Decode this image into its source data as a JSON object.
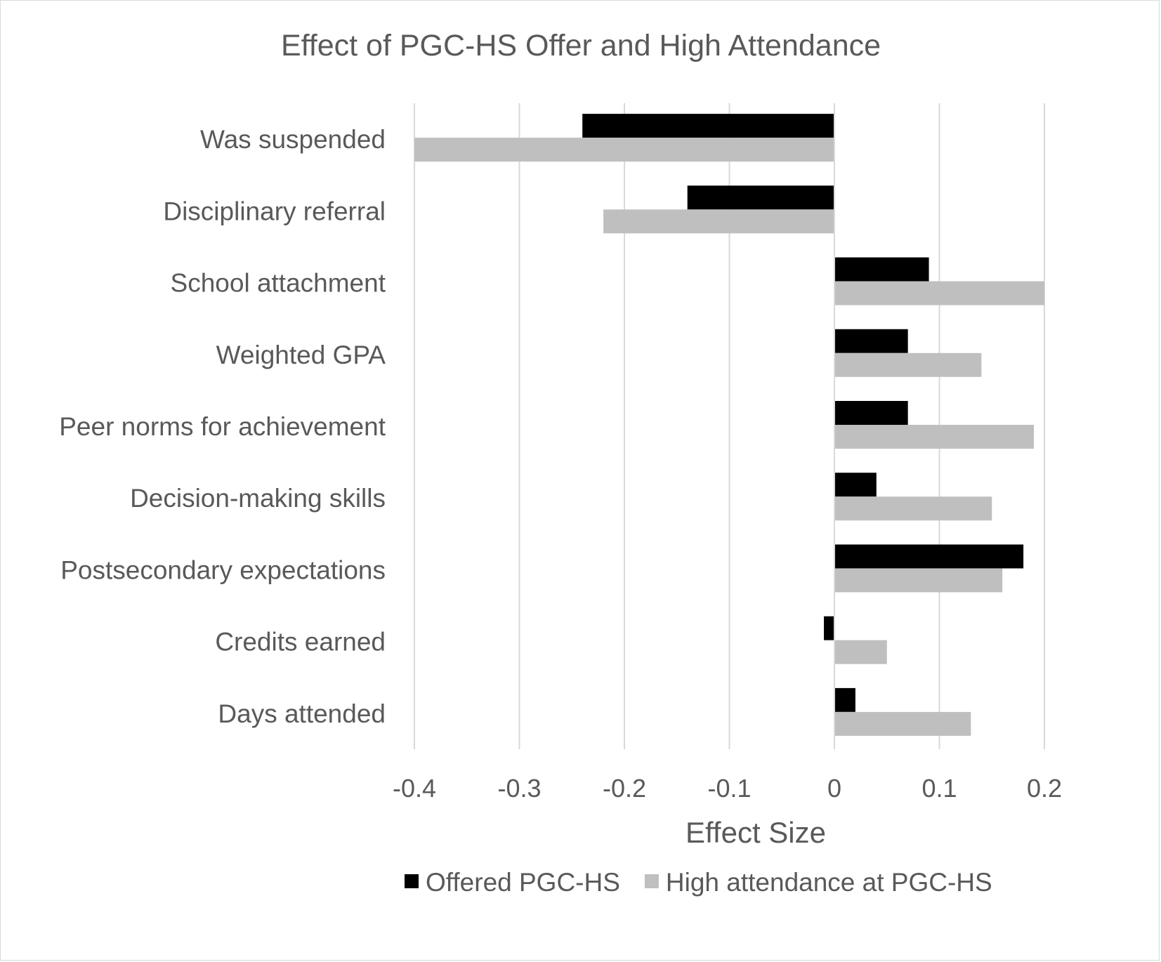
{
  "chart_data": {
    "type": "bar",
    "orientation": "horizontal",
    "title": "Effect of PGC-HS Offer and High Attendance",
    "xlabel": "Effect Size",
    "ylabel": "",
    "xlim": [
      -0.4,
      0.2
    ],
    "x_ticks": [
      "-0.4",
      "-0.3",
      "-0.2",
      "-0.1",
      "0",
      "0.1",
      "0.2"
    ],
    "grid": "vertical",
    "legend_position": "bottom",
    "categories": [
      "Was suspended",
      "Disciplinary referral",
      "School attachment",
      "Weighted GPA",
      "Peer norms for achievement",
      "Decision-making skills",
      "Postsecondary expectations",
      "Credits earned",
      "Days attended"
    ],
    "series": [
      {
        "name": "Offered PGC-HS",
        "color": "#000000",
        "values": [
          -0.24,
          -0.14,
          0.09,
          0.07,
          0.07,
          0.04,
          0.18,
          -0.01,
          0.02
        ]
      },
      {
        "name": "High attendance at PGC-HS",
        "color": "#bfbfbf",
        "values": [
          -0.4,
          -0.22,
          0.2,
          0.14,
          0.19,
          0.15,
          0.16,
          0.05,
          0.13
        ]
      }
    ]
  }
}
